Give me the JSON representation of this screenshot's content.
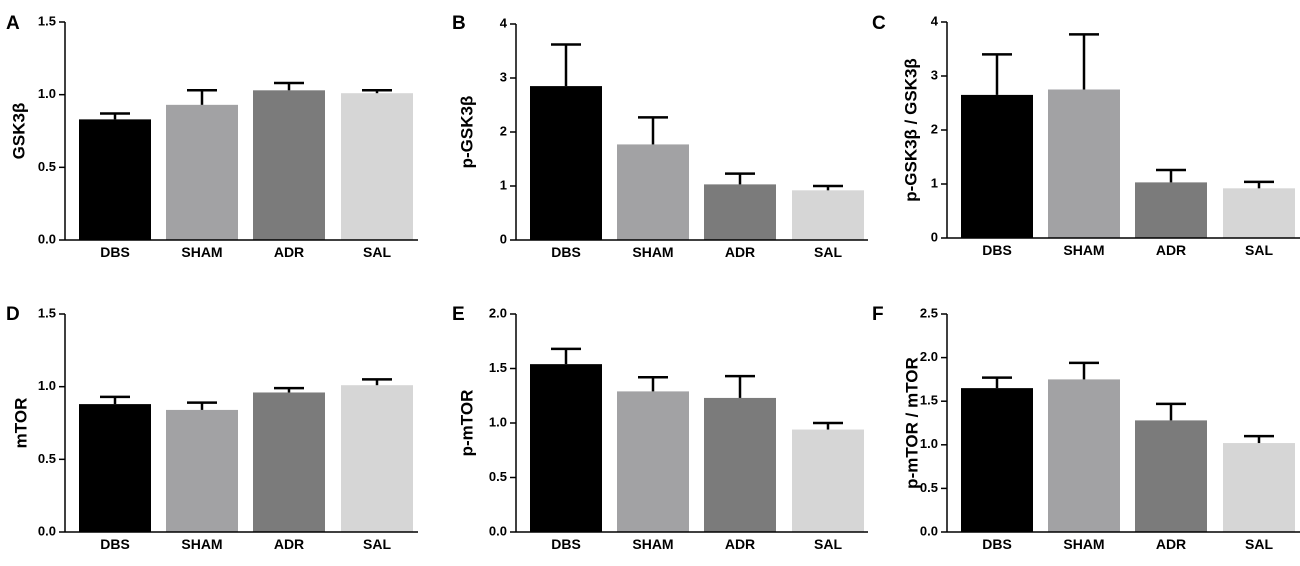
{
  "colors": {
    "DBS": "#000000",
    "SHAM": "#a2a2a4",
    "ADR": "#7b7b7b",
    "SAL": "#d6d6d6",
    "axis": "#000000"
  },
  "chart_data": [
    {
      "type": "bar",
      "panel": "A",
      "title": "",
      "xlabel": "",
      "ylabel": "GSK3β",
      "categories": [
        "DBS",
        "SHAM",
        "ADR",
        "SAL"
      ],
      "values": [
        0.83,
        0.93,
        1.03,
        1.01
      ],
      "errors": [
        0.04,
        0.1,
        0.05,
        0.02
      ],
      "ylim": [
        0,
        1.5
      ],
      "yticks": [
        0,
        0.5,
        1.0,
        1.5
      ],
      "ytick_labels": [
        "0.0",
        "0.5",
        "1.0",
        "1.5"
      ],
      "grid": false
    },
    {
      "type": "bar",
      "panel": "B",
      "title": "",
      "xlabel": "",
      "ylabel": "p-GSK3β",
      "categories": [
        "DBS",
        "SHAM",
        "ADR",
        "SAL"
      ],
      "values": [
        2.85,
        1.77,
        1.03,
        0.92
      ],
      "errors": [
        0.77,
        0.5,
        0.2,
        0.08
      ],
      "ylim": [
        0,
        4
      ],
      "yticks": [
        0,
        1,
        2,
        3,
        4
      ],
      "ytick_labels": [
        "0",
        "1",
        "2",
        "3",
        "4"
      ],
      "grid": false
    },
    {
      "type": "bar",
      "panel": "C",
      "title": "",
      "xlabel": "",
      "ylabel": "p-GSK3β / GSK3β",
      "categories": [
        "DBS",
        "SHAM",
        "ADR",
        "SAL"
      ],
      "values": [
        2.65,
        2.75,
        1.03,
        0.92
      ],
      "errors": [
        0.75,
        1.02,
        0.23,
        0.12
      ],
      "ylim": [
        0,
        4
      ],
      "yticks": [
        0,
        1,
        2,
        3,
        4
      ],
      "ytick_labels": [
        "0",
        "1",
        "2",
        "3",
        "4"
      ],
      "grid": false
    },
    {
      "type": "bar",
      "panel": "D",
      "title": "",
      "xlabel": "",
      "ylabel": "mTOR",
      "categories": [
        "DBS",
        "SHAM",
        "ADR",
        "SAL"
      ],
      "values": [
        0.88,
        0.84,
        0.96,
        1.01
      ],
      "errors": [
        0.05,
        0.05,
        0.03,
        0.04
      ],
      "ylim": [
        0,
        1.5
      ],
      "yticks": [
        0,
        0.5,
        1.0,
        1.5
      ],
      "ytick_labels": [
        "0.0",
        "0.5",
        "1.0",
        "1.5"
      ],
      "grid": false
    },
    {
      "type": "bar",
      "panel": "E",
      "title": "",
      "xlabel": "",
      "ylabel": "p-mTOR",
      "categories": [
        "DBS",
        "SHAM",
        "ADR",
        "SAL"
      ],
      "values": [
        1.54,
        1.29,
        1.23,
        0.94
      ],
      "errors": [
        0.14,
        0.13,
        0.2,
        0.06
      ],
      "ylim": [
        0,
        2.0
      ],
      "yticks": [
        0,
        0.5,
        1.0,
        1.5,
        2.0
      ],
      "ytick_labels": [
        "0.0",
        "0.5",
        "1.0",
        "1.5",
        "2.0"
      ],
      "grid": false
    },
    {
      "type": "bar",
      "panel": "F",
      "title": "",
      "xlabel": "",
      "ylabel": "p-mTOR / mTOR",
      "categories": [
        "DBS",
        "SHAM",
        "ADR",
        "SAL"
      ],
      "values": [
        1.65,
        1.75,
        1.28,
        1.02
      ],
      "errors": [
        0.12,
        0.19,
        0.19,
        0.08
      ],
      "ylim": [
        0,
        2.5
      ],
      "yticks": [
        0,
        0.5,
        1.0,
        1.5,
        2.0,
        2.5
      ],
      "ytick_labels": [
        "0.0",
        "0.5",
        "1.0",
        "1.5",
        "2.0",
        "2.5"
      ],
      "grid": false
    }
  ]
}
